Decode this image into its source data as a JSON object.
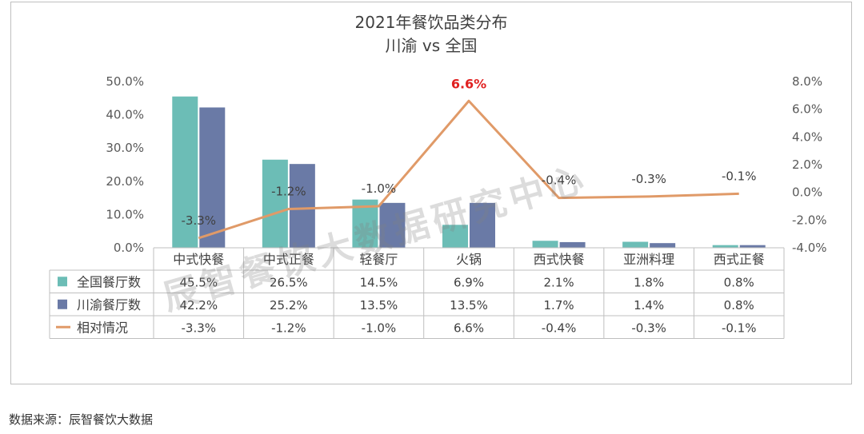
{
  "source_note": "数据来源：辰智餐饮大数据",
  "watermark": "辰智餐饮大数据研究中心",
  "colors": {
    "national": "#6cbdb6",
    "chongqing": "#6a7aa6",
    "relative": "#e09a68",
    "peak_label": "#e02020"
  },
  "chart_data": {
    "type": "bar",
    "title": "2021年餐饮品类分布",
    "subtitle": "川渝 vs 全国",
    "categories": [
      "中式快餐",
      "中式正餐",
      "轻餐厅",
      "火锅",
      "西式快餐",
      "亚洲料理",
      "西式正餐"
    ],
    "series": [
      {
        "name": "全国餐厅数",
        "type": "bar",
        "axis": "left",
        "values": [
          45.5,
          26.5,
          14.5,
          6.9,
          2.1,
          1.8,
          0.8
        ],
        "labels": [
          "45.5%",
          "26.5%",
          "14.5%",
          "6.9%",
          "2.1%",
          "1.8%",
          "0.8%"
        ]
      },
      {
        "name": "川渝餐厅数",
        "type": "bar",
        "axis": "left",
        "values": [
          42.2,
          25.2,
          13.5,
          13.5,
          1.7,
          1.4,
          0.8
        ],
        "labels": [
          "42.2%",
          "25.2%",
          "13.5%",
          "13.5%",
          "1.7%",
          "1.4%",
          "0.8%"
        ]
      },
      {
        "name": "相对情况",
        "type": "line",
        "axis": "right",
        "values": [
          -3.3,
          -1.2,
          -1.0,
          6.6,
          -0.4,
          -0.3,
          -0.1
        ],
        "labels": [
          "-3.3%",
          "-1.2%",
          "-1.0%",
          "6.6%",
          "-0.4%",
          "-0.3%",
          "-0.1%"
        ]
      }
    ],
    "y_left": {
      "ylim": [
        0,
        50
      ],
      "ticks": [
        "0.0%",
        "10.0%",
        "20.0%",
        "30.0%",
        "40.0%",
        "50.0%"
      ]
    },
    "y_right": {
      "ylim": [
        -4,
        8
      ],
      "ticks": [
        "-4.0%",
        "-2.0%",
        "0.0%",
        "2.0%",
        "4.0%",
        "6.0%",
        "8.0%"
      ]
    },
    "grid": false,
    "legend": "data-table-left"
  }
}
